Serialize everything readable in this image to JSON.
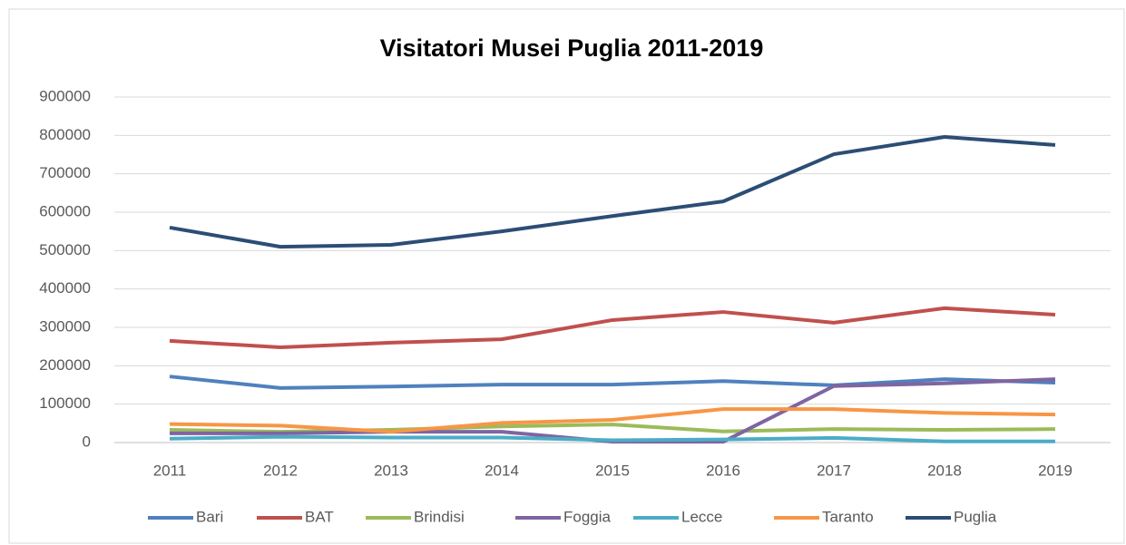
{
  "chart_data": {
    "type": "line",
    "title": "Visitatori Musei Puglia 2011-2019",
    "categories": [
      "2011",
      "2012",
      "2013",
      "2014",
      "2015",
      "2016",
      "2017",
      "2018",
      "2019"
    ],
    "series": [
      {
        "name": "Bari",
        "color": "#4f81bd",
        "values": [
          172000,
          142000,
          146000,
          151000,
          151000,
          160000,
          149000,
          165000,
          156000
        ]
      },
      {
        "name": "BAT",
        "color": "#c0504d",
        "values": [
          265000,
          248000,
          260000,
          269000,
          319000,
          340000,
          312000,
          350000,
          333000
        ]
      },
      {
        "name": "Brindisi",
        "color": "#9bbb59",
        "values": [
          33000,
          28000,
          33000,
          42000,
          47000,
          29000,
          35000,
          33000,
          35000
        ]
      },
      {
        "name": "Foggia",
        "color": "#8064a2",
        "values": [
          24000,
          24000,
          28000,
          28000,
          2000,
          2000,
          147000,
          154000,
          165000
        ]
      },
      {
        "name": "Lecce",
        "color": "#4bacc6",
        "values": [
          10000,
          15000,
          13000,
          13000,
          6000,
          8000,
          12000,
          3000,
          3000
        ]
      },
      {
        "name": "Taranto",
        "color": "#f79646",
        "values": [
          48000,
          44000,
          28000,
          51000,
          59000,
          87000,
          87000,
          77000,
          73000
        ]
      },
      {
        "name": "Puglia",
        "color": "#2c4d75",
        "values": [
          560000,
          510000,
          515000,
          550000,
          590000,
          628000,
          751000,
          796000,
          775000
        ]
      }
    ],
    "ylim": [
      0,
      900000
    ],
    "yticks": [
      0,
      100000,
      200000,
      300000,
      400000,
      500000,
      600000,
      700000,
      800000,
      900000
    ],
    "grid": true,
    "legend": "bottom"
  }
}
